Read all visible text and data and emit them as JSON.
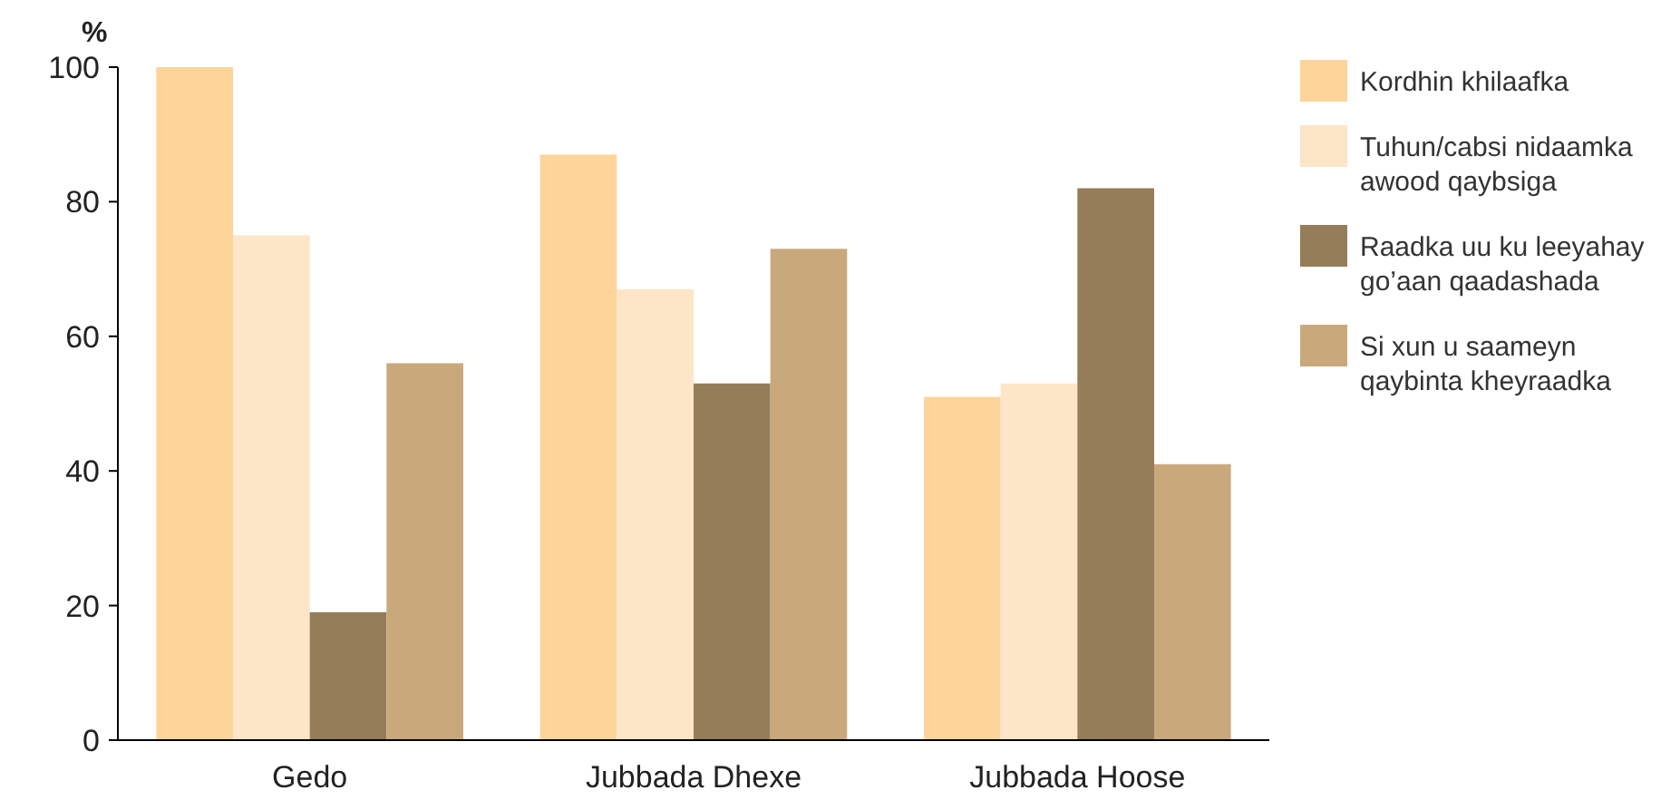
{
  "chart_data": {
    "type": "bar",
    "ylabel": "%",
    "categories": [
      "Gedo",
      "Jubbada Dhexe",
      "Jubbada Hoose"
    ],
    "series": [
      {
        "name": "Kordhin khilaafka",
        "color": "#fdd49a",
        "values": [
          100,
          87,
          51
        ]
      },
      {
        "name": "Tuhun/cabsi nidaamka awood qaybsiga",
        "color": "#fde5c8",
        "values": [
          75,
          67,
          53
        ]
      },
      {
        "name": "Raadka uu ku leeyahay go’aan qaadashada",
        "color": "#957d5a",
        "values": [
          19,
          53,
          82
        ]
      },
      {
        "name": "Si xun u saameyn qaybinta kheyraadka",
        "color": "#c9a87c",
        "values": [
          56,
          73,
          41
        ]
      }
    ],
    "ylim": [
      0,
      100
    ],
    "yticks": [
      0,
      20,
      40,
      60,
      80,
      100
    ],
    "grid": false,
    "legend": "right"
  }
}
